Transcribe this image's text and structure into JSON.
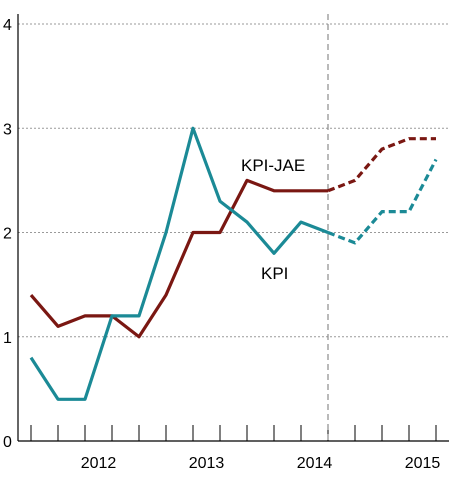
{
  "chart_data": {
    "type": "line",
    "title": "",
    "xlabel": "",
    "ylabel": "",
    "ylim": [
      0,
      4
    ],
    "yticks": [
      "0",
      "1",
      "2",
      "3",
      "4"
    ],
    "grid": true,
    "x": [
      "2011Q4",
      "2012Q1",
      "2012Q2",
      "2012Q3",
      "2012Q4",
      "2013Q1",
      "2013Q2",
      "2013Q3",
      "2013Q4",
      "2014Q1",
      "2014Q2",
      "2014Q3",
      "2014Q4",
      "2015Q1",
      "2015Q2",
      "2015Q3",
      "2015Q4"
    ],
    "year_labels": [
      "2012",
      "2013",
      "2014",
      "2015"
    ],
    "forecast_start": "2014Q3",
    "colors": {
      "KPI-JAE": "#7a1712",
      "KPI": "#1b8a96"
    },
    "series": [
      {
        "name": "KPI-JAE",
        "values": [
          1.4,
          1.1,
          1.2,
          1.2,
          1.0,
          1.4,
          2.0,
          2.0,
          2.5,
          2.4,
          2.4,
          2.4,
          2.5,
          2.8,
          2.9,
          2.9,
          null
        ],
        "forecast_from": "2014Q3"
      },
      {
        "name": "KPI",
        "values": [
          0.8,
          0.4,
          0.4,
          1.2,
          1.2,
          2.0,
          3.0,
          2.3,
          2.1,
          1.8,
          2.1,
          2.0,
          1.9,
          2.2,
          2.2,
          2.7,
          null
        ],
        "forecast_from": "2014Q3"
      }
    ]
  }
}
